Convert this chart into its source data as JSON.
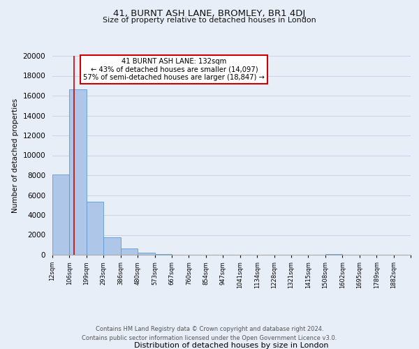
{
  "title": "41, BURNT ASH LANE, BROMLEY, BR1 4DJ",
  "subtitle": "Size of property relative to detached houses in London",
  "xlabel": "Distribution of detached houses by size in London",
  "ylabel": "Number of detached properties",
  "bin_labels": [
    "12sqm",
    "106sqm",
    "199sqm",
    "293sqm",
    "386sqm",
    "480sqm",
    "573sqm",
    "667sqm",
    "760sqm",
    "854sqm",
    "947sqm",
    "1041sqm",
    "1134sqm",
    "1228sqm",
    "1321sqm",
    "1415sqm",
    "1508sqm",
    "1602sqm",
    "1695sqm",
    "1789sqm",
    "1882sqm"
  ],
  "bar_heights": [
    8100,
    16600,
    5300,
    1750,
    600,
    220,
    100,
    0,
    0,
    0,
    0,
    0,
    0,
    0,
    0,
    0,
    100,
    0,
    0,
    0,
    0
  ],
  "bar_color": "#aec6e8",
  "bar_edge_color": "#5b9bd5",
  "property_line_label": "41 BURNT ASH LANE: 132sqm",
  "annotation_line1": "← 43% of detached houses are smaller (14,097)",
  "annotation_line2": "57% of semi-detached houses are larger (18,847) →",
  "vline_color": "#cc0000",
  "ylim": [
    0,
    20000
  ],
  "yticks": [
    0,
    2000,
    4000,
    6000,
    8000,
    10000,
    12000,
    14000,
    16000,
    18000,
    20000
  ],
  "footer_line1": "Contains HM Land Registry data © Crown copyright and database right 2024.",
  "footer_line2": "Contains public sector information licensed under the Open Government Licence v3.0.",
  "background_color": "#e8eef8"
}
